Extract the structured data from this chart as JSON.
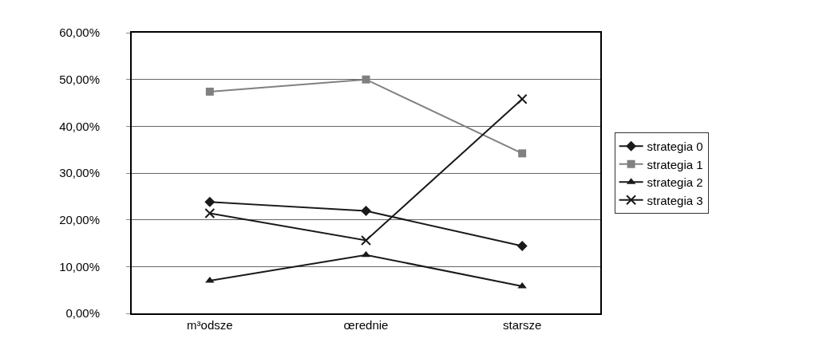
{
  "chart_data": {
    "type": "line",
    "categories": [
      "m³odsze",
      "œrednie",
      "starsze"
    ],
    "series": [
      {
        "name": "strategia 0",
        "color": "#1a1a1a",
        "marker": "diamond",
        "values": [
          23.8,
          21.9,
          14.4
        ]
      },
      {
        "name": "strategia 1",
        "color": "#808080",
        "marker": "square",
        "values": [
          47.4,
          50.0,
          34.2
        ]
      },
      {
        "name": "strategia 2",
        "color": "#1a1a1a",
        "marker": "triangle",
        "values": [
          7.0,
          12.5,
          5.8
        ]
      },
      {
        "name": "strategia 3",
        "color": "#1a1a1a",
        "marker": "cross",
        "values": [
          21.4,
          15.6,
          45.8
        ]
      }
    ],
    "ylim": [
      0,
      60
    ],
    "yticks": [
      {
        "value": 0,
        "label": "0,00%"
      },
      {
        "value": 10,
        "label": "10,00%"
      },
      {
        "value": 20,
        "label": "20,00%"
      },
      {
        "value": 30,
        "label": "30,00%"
      },
      {
        "value": 40,
        "label": "40,00%"
      },
      {
        "value": 50,
        "label": "50,00%"
      },
      {
        "value": 60,
        "label": "60,00%"
      }
    ],
    "grid": "y",
    "legend": "right",
    "line_style": "solid"
  }
}
